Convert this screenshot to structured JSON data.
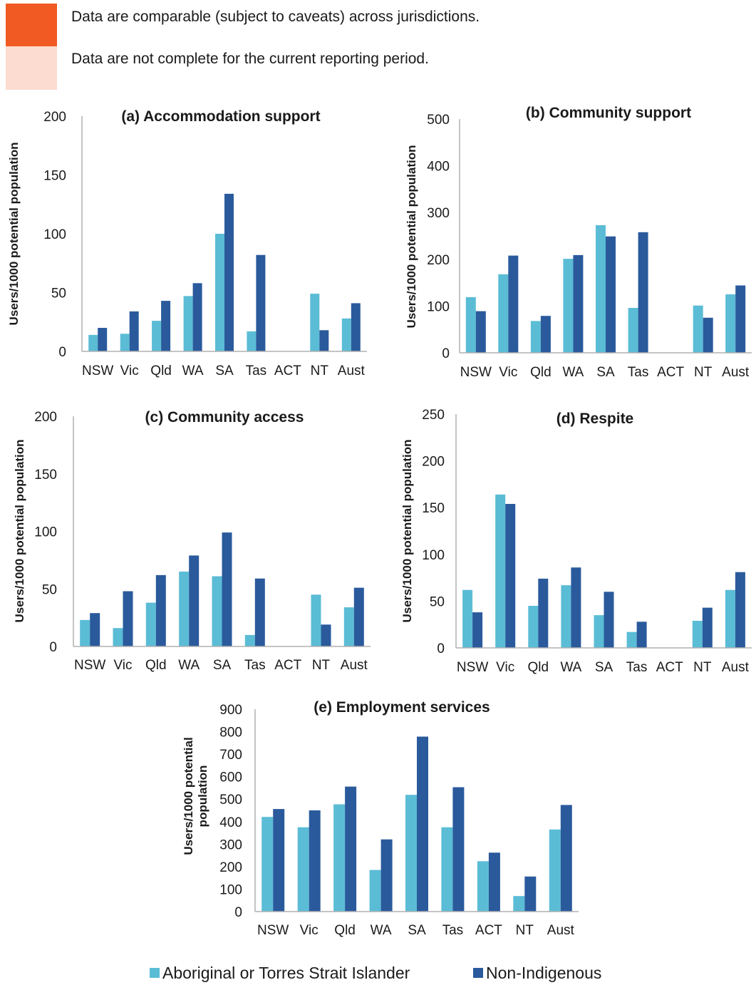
{
  "key": {
    "items": [
      {
        "color": "#f15a22",
        "text": "Data are comparable (subject to caveats) across jurisdictions."
      },
      {
        "color": "#fcdcd0",
        "text": "Data are not complete for the current reporting period."
      }
    ]
  },
  "legend": {
    "aboriginal": {
      "label": "Aboriginal or Torres Strait Islander",
      "color": "#5bbcd6"
    },
    "non_indigenous": {
      "label": "Non-Indigenous",
      "color": "#2a5a9c"
    }
  },
  "chart_data": [
    {
      "type": "bar",
      "title": "(a) Accommodation support",
      "ylabel": "Users/1000 potential population",
      "ylim": [
        0,
        200
      ],
      "yticks": [
        0,
        50,
        100,
        150,
        200
      ],
      "categories": [
        "NSW",
        "Vic",
        "Qld",
        "WA",
        "SA",
        "Tas",
        "ACT",
        "NT",
        "Aust"
      ],
      "series": [
        {
          "name": "Aboriginal or Torres Strait Islander",
          "values": [
            14,
            15,
            26,
            47,
            100,
            17,
            null,
            49,
            28
          ]
        },
        {
          "name": "Non-Indigenous",
          "values": [
            20,
            34,
            43,
            58,
            134,
            82,
            null,
            18,
            41
          ]
        }
      ]
    },
    {
      "type": "bar",
      "title": "(b) Community support",
      "ylabel": "Users/1000 potential population",
      "ylim": [
        0,
        500
      ],
      "yticks": [
        0,
        100,
        200,
        300,
        400,
        500
      ],
      "categories": [
        "NSW",
        "Vic",
        "Qld",
        "WA",
        "SA",
        "Tas",
        "ACT",
        "NT",
        "Aust"
      ],
      "series": [
        {
          "name": "Aboriginal or Torres Strait Islander",
          "values": [
            119,
            168,
            68,
            201,
            273,
            96,
            null,
            101,
            125
          ]
        },
        {
          "name": "Non-Indigenous",
          "values": [
            89,
            208,
            79,
            209,
            249,
            258,
            null,
            75,
            144
          ]
        }
      ]
    },
    {
      "type": "bar",
      "title": "(c) Community access",
      "ylabel": "Users/1000 potential population",
      "ylim": [
        0,
        200
      ],
      "yticks": [
        0,
        50,
        100,
        150,
        200
      ],
      "categories": [
        "NSW",
        "Vic",
        "Qld",
        "WA",
        "SA",
        "Tas",
        "ACT",
        "NT",
        "Aust"
      ],
      "series": [
        {
          "name": "Aboriginal or Torres Strait Islander",
          "values": [
            23,
            16,
            38,
            65,
            61,
            10,
            null,
            45,
            34
          ]
        },
        {
          "name": "Non-Indigenous",
          "values": [
            29,
            48,
            62,
            79,
            99,
            59,
            null,
            19,
            51
          ]
        }
      ]
    },
    {
      "type": "bar",
      "title": "(d) Respite",
      "ylabel": "Users/1000 potential population",
      "ylim": [
        0,
        250
      ],
      "yticks": [
        0,
        50,
        100,
        150,
        200,
        250
      ],
      "categories": [
        "NSW",
        "Vic",
        "Qld",
        "WA",
        "SA",
        "Tas",
        "ACT",
        "NT",
        "Aust"
      ],
      "series": [
        {
          "name": "Aboriginal or Torres Strait Islander",
          "values": [
            62,
            164,
            45,
            67,
            35,
            17,
            null,
            29,
            62
          ]
        },
        {
          "name": "Non-Indigenous",
          "values": [
            38,
            154,
            74,
            86,
            60,
            28,
            null,
            43,
            81
          ]
        }
      ]
    },
    {
      "type": "bar",
      "title": "(e) Employment services",
      "ylabel": "Users/1000 potential population",
      "ylim": [
        0,
        900
      ],
      "yticks": [
        0,
        100,
        200,
        300,
        400,
        500,
        600,
        700,
        800,
        900
      ],
      "categories": [
        "NSW",
        "Vic",
        "Qld",
        "WA",
        "SA",
        "Tas",
        "ACT",
        "NT",
        "Aust"
      ],
      "series": [
        {
          "name": "Aboriginal or Torres Strait Islander",
          "values": [
            421,
            375,
            477,
            185,
            519,
            375,
            224,
            69,
            365
          ]
        },
        {
          "name": "Non-Indigenous",
          "values": [
            456,
            450,
            556,
            321,
            778,
            553,
            262,
            156,
            474
          ]
        }
      ]
    }
  ]
}
